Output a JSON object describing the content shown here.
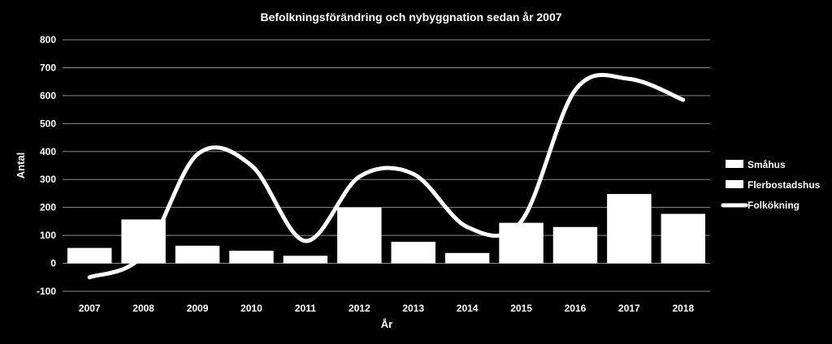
{
  "chart_data": {
    "type": "bar",
    "title": "Befolkningsförändring och nybyggnation sedan år 2007",
    "xlabel": "År",
    "ylabel": "Antal",
    "ylim": [
      -100,
      800
    ],
    "yticks": [
      -100,
      0,
      100,
      200,
      300,
      400,
      500,
      600,
      700,
      800
    ],
    "categories": [
      "2007",
      "2008",
      "2009",
      "2010",
      "2011",
      "2012",
      "2013",
      "2014",
      "2015",
      "2016",
      "2017",
      "2018"
    ],
    "grid": true,
    "legend_position": "right",
    "series": [
      {
        "name": "Småhus",
        "type": "bar",
        "color": "#ffffff",
        "values": [
          55,
          157,
          63,
          45,
          27,
          200,
          77,
          37,
          145,
          130,
          248,
          177
        ]
      },
      {
        "name": "Flerbostadshus",
        "type": "bar",
        "color": "#ffffff",
        "values": [
          0,
          0,
          0,
          0,
          0,
          0,
          0,
          0,
          0,
          0,
          0,
          0
        ]
      },
      {
        "name": "Folkökning",
        "type": "line",
        "smooth": true,
        "color": "#ffffff",
        "values": [
          -50,
          30,
          390,
          350,
          80,
          310,
          320,
          130,
          150,
          620,
          660,
          585
        ]
      }
    ]
  }
}
